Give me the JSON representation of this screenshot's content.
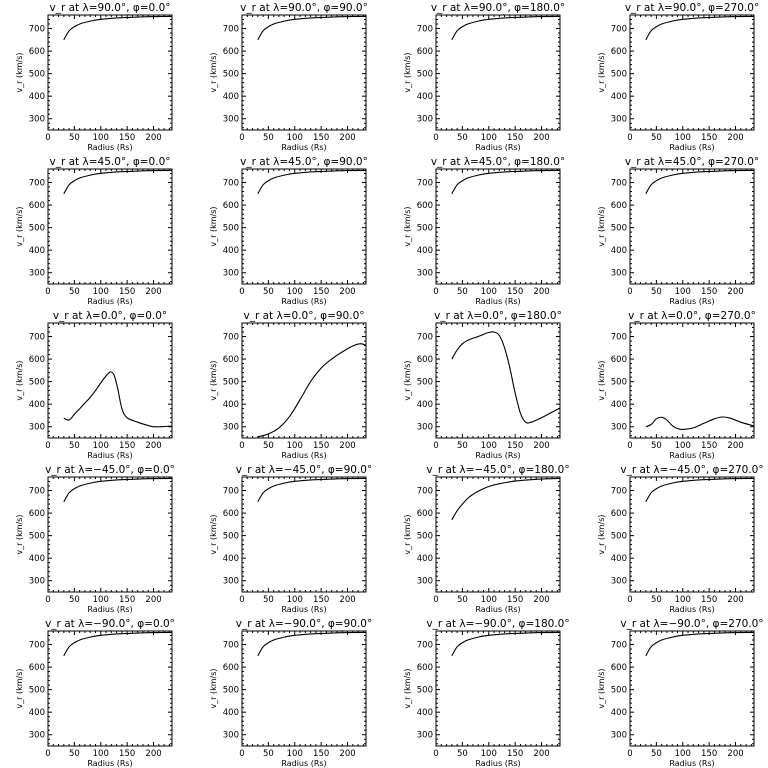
{
  "chart_data": [
    {
      "type": "line",
      "title": "v_r at λ=90.0°, φ=0.0°",
      "xlabel": "Radius (Rs)",
      "ylabel": "v_r (km/s)",
      "xlim": [
        0,
        235
      ],
      "ylim": [
        250,
        760
      ],
      "xticks": [
        0,
        50,
        100,
        150,
        200
      ],
      "yticks": [
        300,
        400,
        500,
        600,
        700
      ],
      "x": [
        30,
        40,
        50,
        60,
        80,
        100,
        130,
        160,
        200,
        235
      ],
      "y": [
        650,
        690,
        708,
        720,
        733,
        741,
        747,
        750,
        753,
        754
      ]
    },
    {
      "type": "line",
      "title": "v_r at λ=90.0°, φ=90.0°",
      "xlabel": "Radius (Rs)",
      "ylabel": "v_r (km/s)",
      "xlim": [
        0,
        235
      ],
      "ylim": [
        250,
        760
      ],
      "xticks": [
        0,
        50,
        100,
        150,
        200
      ],
      "yticks": [
        300,
        400,
        500,
        600,
        700
      ],
      "x": [
        30,
        40,
        50,
        60,
        80,
        100,
        130,
        160,
        200,
        235
      ],
      "y": [
        650,
        690,
        708,
        720,
        733,
        741,
        747,
        750,
        753,
        754
      ]
    },
    {
      "type": "line",
      "title": "v_r at λ=90.0°, φ=180.0°",
      "xlabel": "Radius (Rs)",
      "ylabel": "v_r (km/s)",
      "xlim": [
        0,
        235
      ],
      "ylim": [
        250,
        760
      ],
      "xticks": [
        0,
        50,
        100,
        150,
        200
      ],
      "yticks": [
        300,
        400,
        500,
        600,
        700
      ],
      "x": [
        30,
        40,
        50,
        60,
        80,
        100,
        130,
        160,
        200,
        235
      ],
      "y": [
        650,
        690,
        708,
        720,
        733,
        741,
        747,
        750,
        753,
        754
      ]
    },
    {
      "type": "line",
      "title": "v_r at λ=90.0°, φ=270.0°",
      "xlabel": "Radius (Rs)",
      "ylabel": "v_r (km/s)",
      "xlim": [
        0,
        235
      ],
      "ylim": [
        250,
        760
      ],
      "xticks": [
        0,
        50,
        100,
        150,
        200
      ],
      "yticks": [
        300,
        400,
        500,
        600,
        700
      ],
      "x": [
        30,
        40,
        50,
        60,
        80,
        100,
        130,
        160,
        200,
        235
      ],
      "y": [
        650,
        690,
        708,
        720,
        733,
        741,
        747,
        750,
        753,
        754
      ]
    },
    {
      "type": "line",
      "title": "v_r at λ=45.0°, φ=0.0°",
      "xlabel": "Radius (Rs)",
      "ylabel": "v_r (km/s)",
      "xlim": [
        0,
        235
      ],
      "ylim": [
        250,
        760
      ],
      "xticks": [
        0,
        50,
        100,
        150,
        200
      ],
      "yticks": [
        300,
        400,
        500,
        600,
        700
      ],
      "x": [
        30,
        40,
        50,
        60,
        80,
        100,
        130,
        160,
        200,
        235
      ],
      "y": [
        650,
        690,
        708,
        720,
        733,
        741,
        747,
        750,
        753,
        754
      ]
    },
    {
      "type": "line",
      "title": "v_r at λ=45.0°, φ=90.0°",
      "xlabel": "Radius (Rs)",
      "ylabel": "v_r (km/s)",
      "xlim": [
        0,
        235
      ],
      "ylim": [
        250,
        760
      ],
      "xticks": [
        0,
        50,
        100,
        150,
        200
      ],
      "yticks": [
        300,
        400,
        500,
        600,
        700
      ],
      "x": [
        30,
        40,
        50,
        60,
        80,
        100,
        130,
        160,
        200,
        235
      ],
      "y": [
        650,
        690,
        708,
        720,
        733,
        741,
        747,
        750,
        753,
        754
      ]
    },
    {
      "type": "line",
      "title": "v_r at λ=45.0°, φ=180.0°",
      "xlabel": "Radius (Rs)",
      "ylabel": "v_r (km/s)",
      "xlim": [
        0,
        235
      ],
      "ylim": [
        250,
        760
      ],
      "xticks": [
        0,
        50,
        100,
        150,
        200
      ],
      "yticks": [
        300,
        400,
        500,
        600,
        700
      ],
      "x": [
        30,
        40,
        50,
        60,
        80,
        100,
        130,
        160,
        200,
        235
      ],
      "y": [
        650,
        690,
        708,
        720,
        733,
        741,
        747,
        750,
        753,
        754
      ]
    },
    {
      "type": "line",
      "title": "v_r at λ=45.0°, φ=270.0°",
      "xlabel": "Radius (Rs)",
      "ylabel": "v_r (km/s)",
      "xlim": [
        0,
        235
      ],
      "ylim": [
        250,
        760
      ],
      "xticks": [
        0,
        50,
        100,
        150,
        200
      ],
      "yticks": [
        300,
        400,
        500,
        600,
        700
      ],
      "x": [
        30,
        40,
        50,
        60,
        80,
        100,
        130,
        160,
        200,
        235
      ],
      "y": [
        650,
        690,
        708,
        720,
        733,
        741,
        747,
        750,
        753,
        754
      ]
    },
    {
      "type": "line",
      "title": "v_r at λ=0.0°, φ=0.0°",
      "xlabel": "Radius (Rs)",
      "ylabel": "v_r (km/s)",
      "xlim": [
        0,
        235
      ],
      "ylim": [
        250,
        760
      ],
      "xticks": [
        0,
        50,
        100,
        150,
        200
      ],
      "yticks": [
        300,
        400,
        500,
        600,
        700
      ],
      "x": [
        30,
        40,
        50,
        60,
        70,
        80,
        90,
        100,
        110,
        118,
        125,
        132,
        140,
        150,
        170,
        190,
        200,
        215,
        235
      ],
      "y": [
        338,
        330,
        355,
        380,
        405,
        430,
        460,
        495,
        525,
        543,
        530,
        470,
        380,
        340,
        320,
        305,
        300,
        300,
        303
      ]
    },
    {
      "type": "line",
      "title": "v_r at λ=0.0°, φ=90.0°",
      "xlabel": "Radius (Rs)",
      "ylabel": "v_r (km/s)",
      "xlim": [
        0,
        235
      ],
      "ylim": [
        250,
        760
      ],
      "xticks": [
        0,
        50,
        100,
        150,
        200
      ],
      "yticks": [
        300,
        400,
        500,
        600,
        700
      ],
      "x": [
        30,
        50,
        70,
        90,
        110,
        130,
        150,
        170,
        190,
        210,
        225,
        235
      ],
      "y": [
        255,
        268,
        295,
        345,
        420,
        500,
        560,
        600,
        632,
        658,
        668,
        660
      ]
    },
    {
      "type": "line",
      "title": "v_r at λ=0.0°, φ=180.0°",
      "xlabel": "Radius (Rs)",
      "ylabel": "v_r (km/s)",
      "xlim": [
        0,
        235
      ],
      "ylim": [
        250,
        760
      ],
      "xticks": [
        0,
        50,
        100,
        150,
        200
      ],
      "yticks": [
        300,
        400,
        500,
        600,
        700
      ],
      "x": [
        30,
        40,
        50,
        60,
        70,
        80,
        90,
        100,
        110,
        120,
        130,
        140,
        150,
        160,
        170,
        180,
        200,
        220,
        235
      ],
      "y": [
        600,
        640,
        668,
        683,
        692,
        700,
        710,
        718,
        720,
        705,
        650,
        560,
        450,
        360,
        320,
        320,
        340,
        365,
        383
      ]
    },
    {
      "type": "line",
      "title": "v_r at λ=0.0°, φ=270.0°",
      "xlabel": "Radius (Rs)",
      "ylabel": "v_r (km/s)",
      "xlim": [
        0,
        235
      ],
      "ylim": [
        250,
        760
      ],
      "xticks": [
        0,
        50,
        100,
        150,
        200
      ],
      "yticks": [
        300,
        400,
        500,
        600,
        700
      ],
      "x": [
        30,
        40,
        50,
        60,
        70,
        80,
        90,
        100,
        120,
        140,
        160,
        175,
        190,
        210,
        235
      ],
      "y": [
        300,
        310,
        335,
        342,
        330,
        305,
        292,
        288,
        295,
        315,
        335,
        343,
        338,
        320,
        303
      ]
    },
    {
      "type": "line",
      "title": "v_r at λ=−45.0°, φ=0.0°",
      "xlabel": "Radius (Rs)",
      "ylabel": "v_r (km/s)",
      "xlim": [
        0,
        235
      ],
      "ylim": [
        250,
        760
      ],
      "xticks": [
        0,
        50,
        100,
        150,
        200
      ],
      "yticks": [
        300,
        400,
        500,
        600,
        700
      ],
      "x": [
        30,
        40,
        50,
        60,
        80,
        100,
        130,
        160,
        200,
        235
      ],
      "y": [
        650,
        690,
        708,
        720,
        733,
        741,
        747,
        750,
        753,
        754
      ]
    },
    {
      "type": "line",
      "title": "v_r at λ=−45.0°, φ=90.0°",
      "xlabel": "Radius (Rs)",
      "ylabel": "v_r (km/s)",
      "xlim": [
        0,
        235
      ],
      "ylim": [
        250,
        760
      ],
      "xticks": [
        0,
        50,
        100,
        150,
        200
      ],
      "yticks": [
        300,
        400,
        500,
        600,
        700
      ],
      "x": [
        30,
        40,
        50,
        60,
        80,
        100,
        130,
        160,
        200,
        235
      ],
      "y": [
        650,
        690,
        708,
        720,
        733,
        741,
        747,
        750,
        753,
        754
      ]
    },
    {
      "type": "line",
      "title": "v_r at λ=−45.0°, φ=180.0°",
      "xlabel": "Radius (Rs)",
      "ylabel": "v_r (km/s)",
      "xlim": [
        0,
        235
      ],
      "ylim": [
        250,
        760
      ],
      "xticks": [
        0,
        50,
        100,
        150,
        200
      ],
      "yticks": [
        300,
        400,
        500,
        600,
        700
      ],
      "x": [
        30,
        40,
        50,
        60,
        70,
        80,
        100,
        120,
        150,
        180,
        210,
        235
      ],
      "y": [
        570,
        610,
        640,
        665,
        683,
        697,
        718,
        730,
        742,
        748,
        752,
        754
      ]
    },
    {
      "type": "line",
      "title": "v_r at λ=−45.0°, φ=270.0°",
      "xlabel": "Radius (Rs)",
      "ylabel": "v_r (km/s)",
      "xlim": [
        0,
        235
      ],
      "ylim": [
        250,
        760
      ],
      "xticks": [
        0,
        50,
        100,
        150,
        200
      ],
      "yticks": [
        300,
        400,
        500,
        600,
        700
      ],
      "x": [
        30,
        40,
        50,
        60,
        80,
        100,
        130,
        160,
        200,
        235
      ],
      "y": [
        650,
        690,
        708,
        720,
        733,
        741,
        747,
        750,
        753,
        754
      ]
    },
    {
      "type": "line",
      "title": "v_r at λ=−90.0°, φ=0.0°",
      "xlabel": "Radius (Rs)",
      "ylabel": "v_r (km/s)",
      "xlim": [
        0,
        235
      ],
      "ylim": [
        250,
        760
      ],
      "xticks": [
        0,
        50,
        100,
        150,
        200
      ],
      "yticks": [
        300,
        400,
        500,
        600,
        700
      ],
      "x": [
        30,
        40,
        50,
        60,
        80,
        100,
        130,
        160,
        200,
        235
      ],
      "y": [
        650,
        690,
        708,
        720,
        733,
        741,
        747,
        750,
        753,
        754
      ]
    },
    {
      "type": "line",
      "title": "v_r at λ=−90.0°, φ=90.0°",
      "xlabel": "Radius (Rs)",
      "ylabel": "v_r (km/s)",
      "xlim": [
        0,
        235
      ],
      "ylim": [
        250,
        760
      ],
      "xticks": [
        0,
        50,
        100,
        150,
        200
      ],
      "yticks": [
        300,
        400,
        500,
        600,
        700
      ],
      "x": [
        30,
        40,
        50,
        60,
        80,
        100,
        130,
        160,
        200,
        235
      ],
      "y": [
        650,
        690,
        708,
        720,
        733,
        741,
        747,
        750,
        753,
        754
      ]
    },
    {
      "type": "line",
      "title": "v_r at λ=−90.0°, φ=180.0°",
      "xlabel": "Radius (Rs)",
      "ylabel": "v_r (km/s)",
      "xlim": [
        0,
        235
      ],
      "ylim": [
        250,
        760
      ],
      "xticks": [
        0,
        50,
        100,
        150,
        200
      ],
      "yticks": [
        300,
        400,
        500,
        600,
        700
      ],
      "x": [
        30,
        40,
        50,
        60,
        80,
        100,
        130,
        160,
        200,
        235
      ],
      "y": [
        650,
        690,
        708,
        720,
        733,
        741,
        747,
        750,
        753,
        754
      ]
    },
    {
      "type": "line",
      "title": "v_r at λ=−90.0°, φ=270.0°",
      "xlabel": "Radius (Rs)",
      "ylabel": "v_r (km/s)",
      "xlim": [
        0,
        235
      ],
      "ylim": [
        250,
        760
      ],
      "xticks": [
        0,
        50,
        100,
        150,
        200
      ],
      "yticks": [
        300,
        400,
        500,
        600,
        700
      ],
      "x": [
        30,
        40,
        50,
        60,
        80,
        100,
        130,
        160,
        200,
        235
      ],
      "y": [
        650,
        690,
        708,
        720,
        733,
        741,
        747,
        750,
        753,
        754
      ]
    }
  ]
}
